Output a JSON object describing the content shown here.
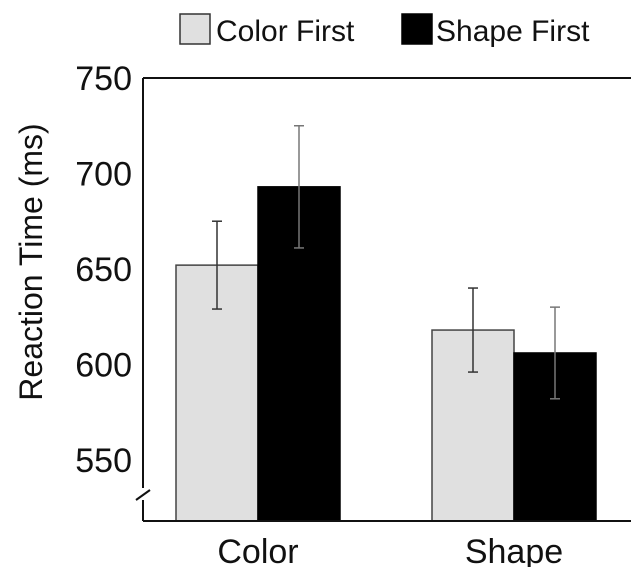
{
  "chart_data": {
    "type": "bar",
    "title": "",
    "xlabel": "",
    "ylabel": "Reaction Time (ms)",
    "categories": [
      "Color",
      "Shape"
    ],
    "series": [
      {
        "name": "Color First",
        "values": [
          652,
          618
        ],
        "errors": [
          23,
          22
        ],
        "color": "#e0e0e0"
      },
      {
        "name": "Shape First",
        "values": [
          693,
          606
        ],
        "errors": [
          32,
          24
        ],
        "color": "#000000"
      }
    ],
    "ylim": [
      518,
      750
    ],
    "yticks": [
      550,
      600,
      650,
      700,
      750
    ],
    "axis_break": true,
    "grid": false,
    "legend_position": "top"
  }
}
